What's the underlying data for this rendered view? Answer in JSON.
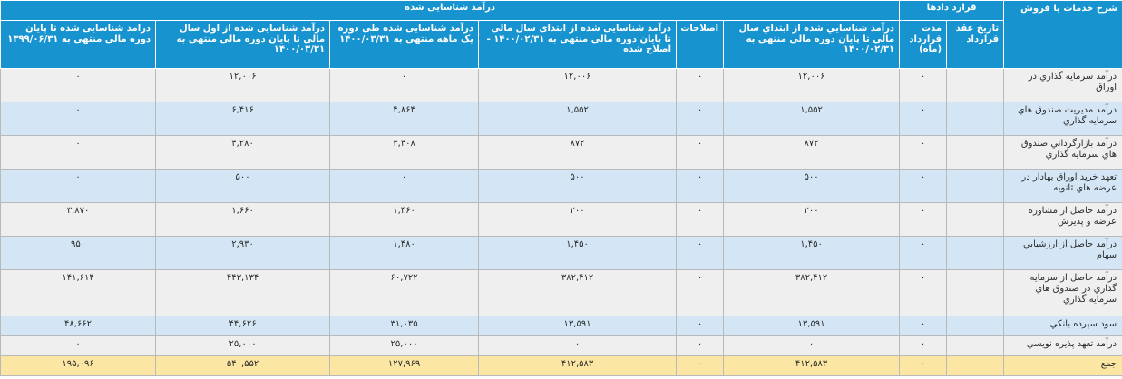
{
  "headers": {
    "row1": {
      "service": "شرح خدمات یا فروش",
      "contracts_group": "قرارد دادها",
      "revenue_group": "درآمد شناسایی شده"
    },
    "row2": {
      "contract_date": "تاریخ عقد قرارداد",
      "contract_duration": "مدت قرارداد (ماه)",
      "rev_ytd": "درآمد شناسايي شده از ابتداي سال مالي تا پايان دوره مالي منتهي به ۱۴۰۰/۰۲/۳۱",
      "corrections": "اصلاحات",
      "rev_ytd_corrected": "درآمد شناسایی شده از ابتدای سال مالی تا پایان دوره مالی منتهی به ۱۴۰۰/۰۲/۳۱ - اصلاح شده",
      "rev_month": "درآمد شناسایی شده طی دوره یک ماهه منتهی به ۱۴۰۰/۰۳/۳۱",
      "rev_fy_to_date": "درآمد شناسایی شده از اول سال مالی تا پایان دوره مالی منتهی به ۱۴۰۰/۰۳/۳۱",
      "rev_prior_year": "درامد شناسایی شده تا پایان دوره مالی منتهی به ۱۳۹۹/۰۶/۳۱"
    }
  },
  "rows": [
    {
      "service": "درآمد سرمايه گذاري در اوراق",
      "contract_date": "",
      "duration": "۰",
      "ytd": "۱۲,۰۰۶",
      "corrections": "۰",
      "ytd_corrected": "۱۲,۰۰۶",
      "month": "۰",
      "fy_to_date": "۱۲,۰۰۶",
      "prior_year": "۰"
    },
    {
      "service": "درآمد مديريت صندوق هاي سرمايه گذاري",
      "contract_date": "",
      "duration": "۰",
      "ytd": "۱,۵۵۲",
      "corrections": "۰",
      "ytd_corrected": "۱,۵۵۲",
      "month": "۴,۸۶۴",
      "fy_to_date": "۶,۴۱۶",
      "prior_year": "۰"
    },
    {
      "service": "درآمد بازارگرداني صندوق هاي سرمايه گذاري",
      "contract_date": "",
      "duration": "۰",
      "ytd": "۸۷۲",
      "corrections": "۰",
      "ytd_corrected": "۸۷۲",
      "month": "۳,۴۰۸",
      "fy_to_date": "۴,۲۸۰",
      "prior_year": "۰"
    },
    {
      "service": "تعهد خريد اوراق بهادار در عرضه هاي ثانويه",
      "contract_date": "",
      "duration": "۰",
      "ytd": "۵۰۰",
      "corrections": "۰",
      "ytd_corrected": "۵۰۰",
      "month": "۰",
      "fy_to_date": "۵۰۰",
      "prior_year": "۰"
    },
    {
      "service": "درآمد حاصل از مشاوره عرضه و پذیرش",
      "contract_date": "",
      "duration": "۰",
      "ytd": "۲۰۰",
      "corrections": "۰",
      "ytd_corrected": "۲۰۰",
      "month": "۱,۴۶۰",
      "fy_to_date": "۱,۶۶۰",
      "prior_year": "۳,۸۷۰"
    },
    {
      "service": "درآمد حاصل از ارزشيابي سهام",
      "contract_date": "",
      "duration": "۰",
      "ytd": "۱,۴۵۰",
      "corrections": "۰",
      "ytd_corrected": "۱,۴۵۰",
      "month": "۱,۴۸۰",
      "fy_to_date": "۲,۹۳۰",
      "prior_year": "۹۵۰"
    },
    {
      "service": "درآمد حاصل از سرمايه گذاري در صندوق هاي سرمايه گذاري",
      "contract_date": "",
      "duration": "۰",
      "ytd": "۳۸۲,۴۱۲",
      "corrections": "۰",
      "ytd_corrected": "۳۸۲,۴۱۲",
      "month": "۶۰,۷۲۲",
      "fy_to_date": "۴۴۳,۱۳۴",
      "prior_year": "۱۴۱,۶۱۴"
    },
    {
      "service": "سود سپرده بانكي",
      "contract_date": "",
      "duration": "۰",
      "ytd": "۱۳,۵۹۱",
      "corrections": "۰",
      "ytd_corrected": "۱۳,۵۹۱",
      "month": "۳۱,۰۳۵",
      "fy_to_date": "۴۴,۶۲۶",
      "prior_year": "۴۸,۶۶۲"
    },
    {
      "service": "درآمد تعهد پذيره نويسي",
      "contract_date": "",
      "duration": "۰",
      "ytd": "۰",
      "corrections": "۰",
      "ytd_corrected": "۰",
      "month": "۲۵,۰۰۰",
      "fy_to_date": "۲۵,۰۰۰",
      "prior_year": "۰"
    }
  ],
  "total": {
    "service": "جمع",
    "contract_date": "",
    "duration": "۰",
    "ytd": "۴۱۲,۵۸۳",
    "corrections": "۰",
    "ytd_corrected": "۴۱۲,۵۸۳",
    "month": "۱۲۷,۹۶۹",
    "fy_to_date": "۵۴۰,۵۵۲",
    "prior_year": "۱۹۵,۰۹۶"
  }
}
